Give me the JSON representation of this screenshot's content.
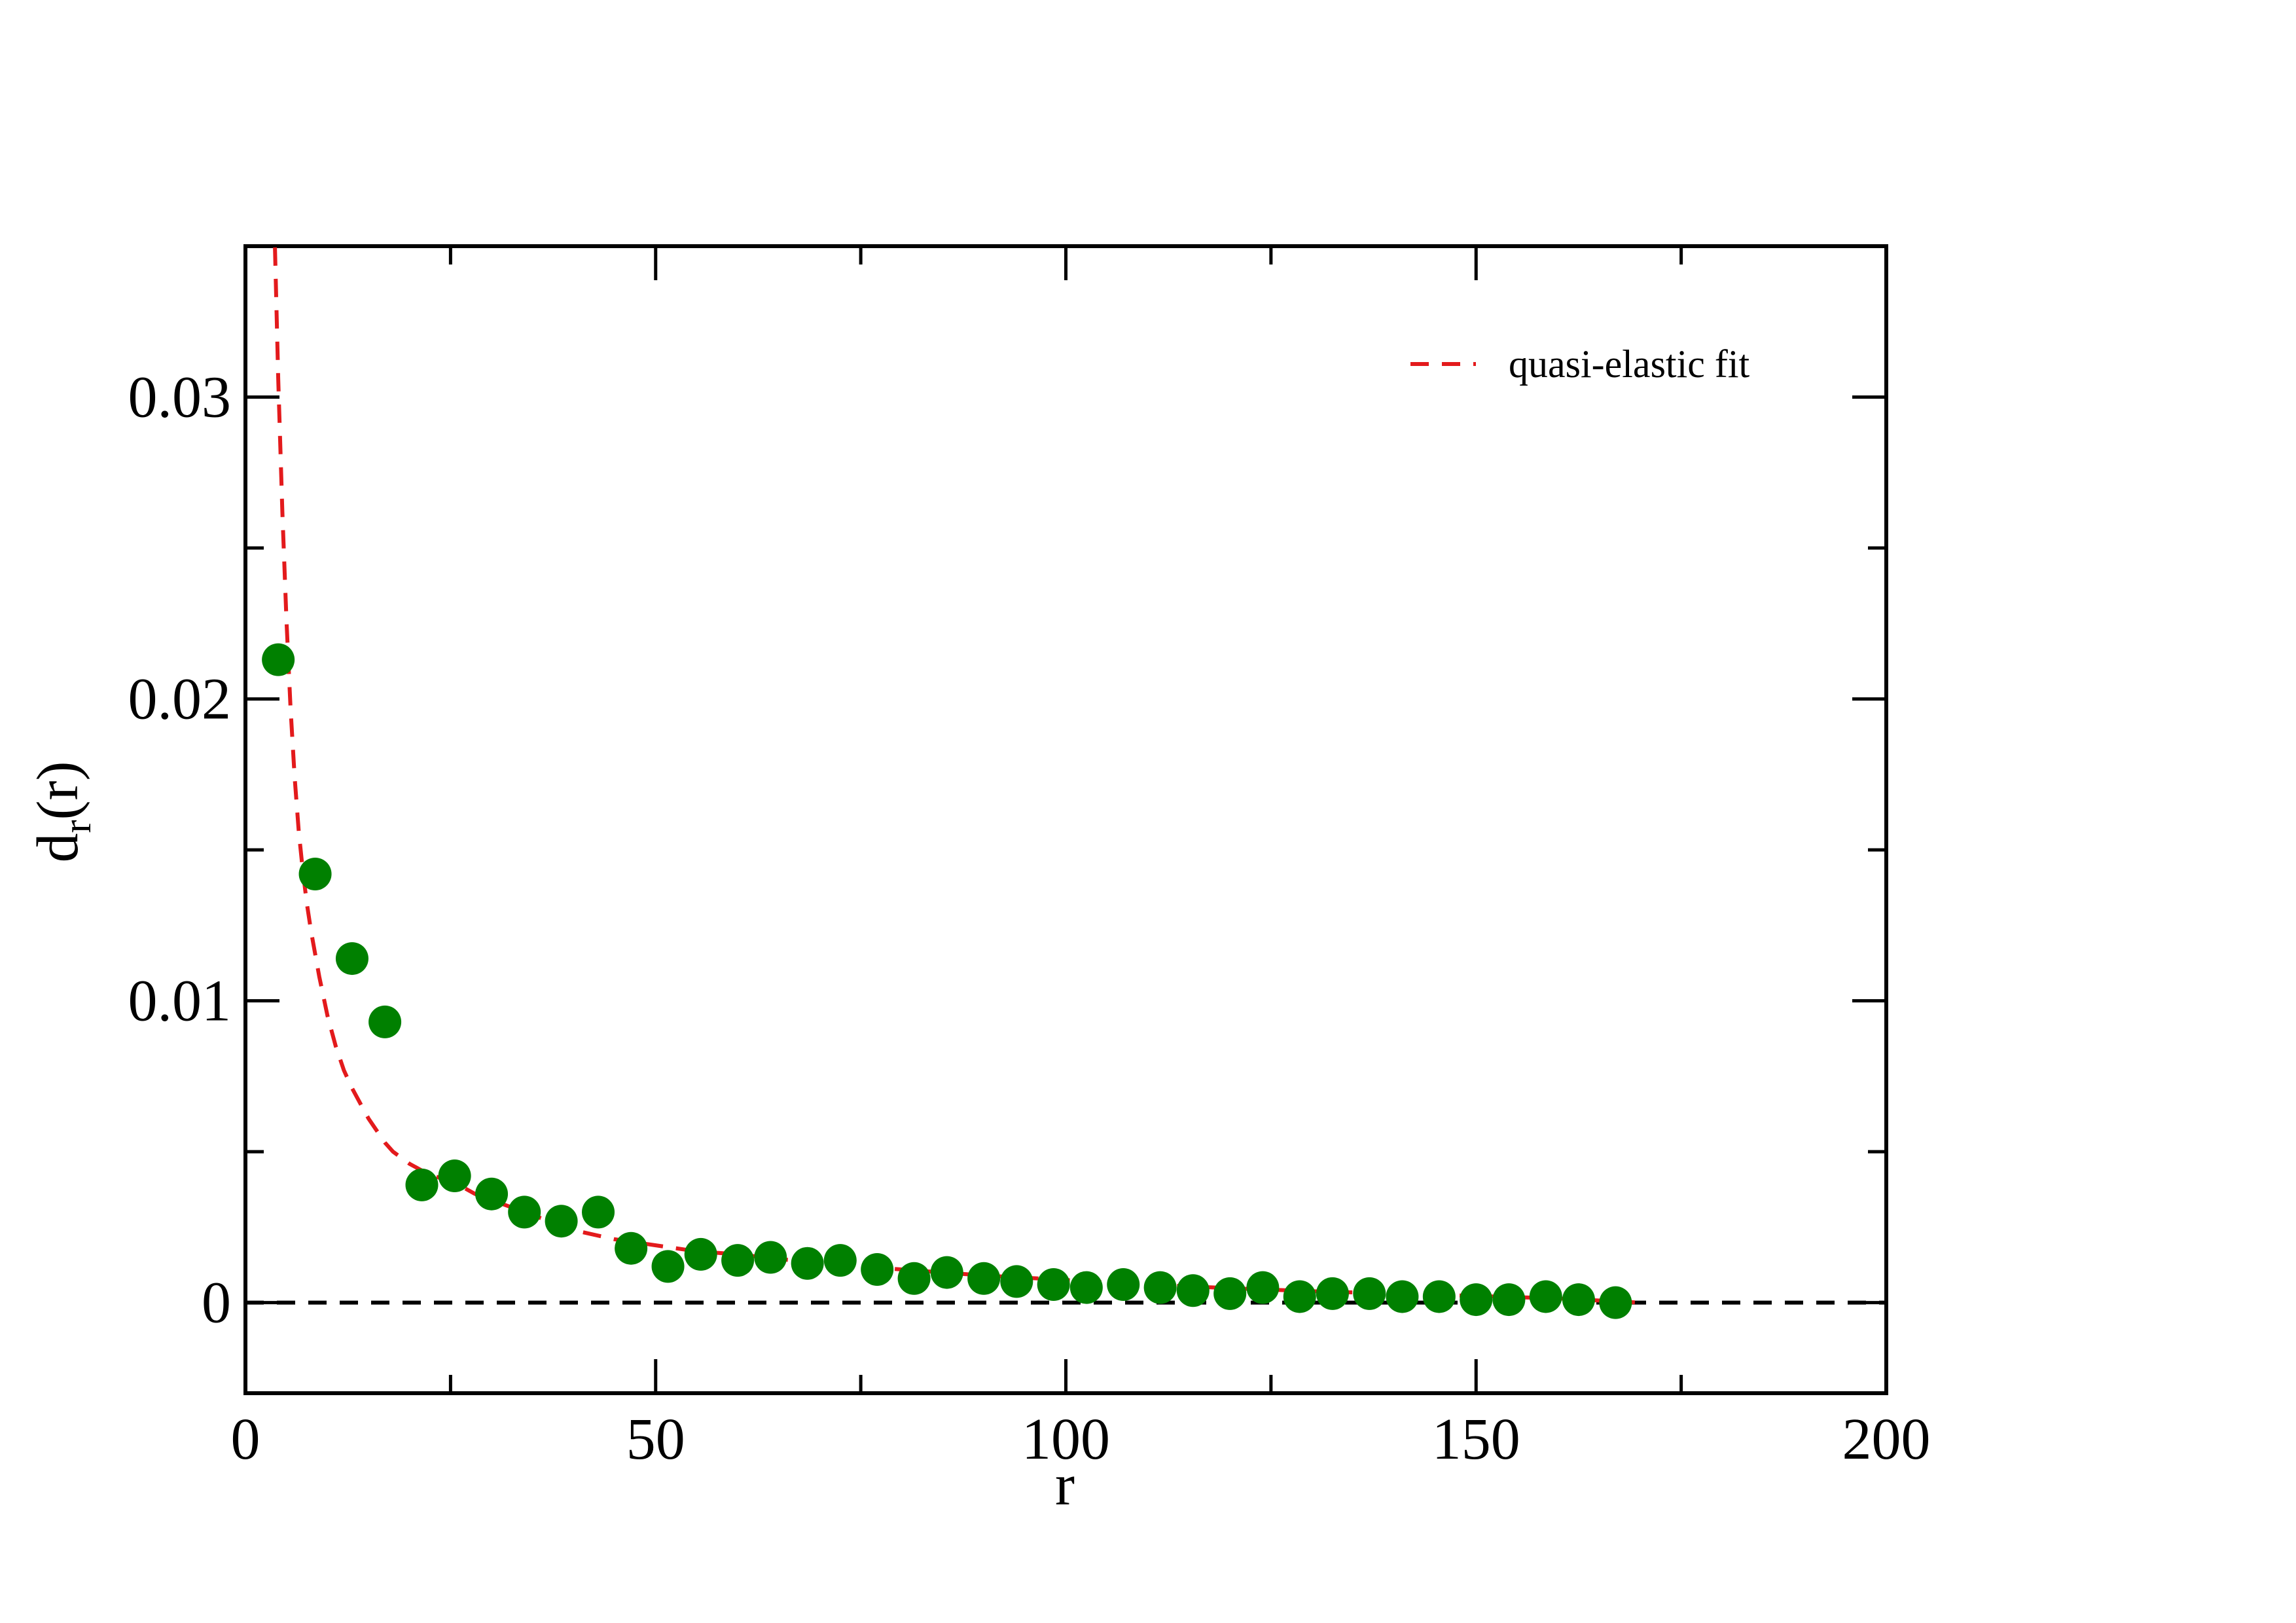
{
  "chart_data": {
    "type": "scatter",
    "xlabel": "r",
    "ylabel": {
      "main": "d",
      "subscript": "r",
      "suffix": "(r)"
    },
    "xlim": [
      0,
      200
    ],
    "ylim": [
      -0.003,
      0.035
    ],
    "x_ticks": [
      0,
      50,
      100,
      150,
      200
    ],
    "x_tick_labels": [
      "0",
      "50",
      "100",
      "150",
      "200"
    ],
    "x_minor_ticks": [
      25,
      75,
      125,
      175
    ],
    "y_ticks": [
      0,
      0.01,
      0.02,
      0.03
    ],
    "y_tick_labels": [
      "0",
      "0.01",
      "0.02",
      "0.03"
    ],
    "y_minor_ticks": [
      0.005,
      0.015,
      0.025
    ],
    "grid": false,
    "legend_position": "top-right",
    "reference_line": {
      "y": 0,
      "x_range": [
        0,
        200
      ],
      "color": "#000000",
      "style": "dashed"
    },
    "series": [
      {
        "kind": "points",
        "color": "#008000",
        "x": [
          4,
          8.5,
          13,
          17,
          21.5,
          25.5,
          30,
          34,
          38.5,
          43,
          47,
          51.5,
          55.5,
          60,
          64,
          68.5,
          72.5,
          77,
          81.5,
          85.5,
          90,
          94,
          98.5,
          102.5,
          107,
          111.5,
          115.5,
          120,
          124,
          128.5,
          132.5,
          137,
          141,
          145.5,
          150,
          154,
          158.5,
          162.5,
          167
        ],
        "y": [
          0.0213,
          0.0142,
          0.0114,
          0.0093,
          0.0039,
          0.0042,
          0.0036,
          0.003,
          0.0027,
          0.003,
          0.0018,
          0.0012,
          0.0016,
          0.0014,
          0.0015,
          0.0013,
          0.0014,
          0.0011,
          0.0008,
          0.001,
          0.0008,
          0.0007,
          0.0006,
          0.0005,
          0.0006,
          0.0005,
          0.0004,
          0.0003,
          0.0005,
          0.0002,
          0.0003,
          0.0003,
          0.0002,
          0.0002,
          0.0001,
          0.0001,
          0.0002,
          0.0001,
          0.0
        ]
      },
      {
        "kind": "line",
        "name": "quasi-elastic fit",
        "color": "#e31a1c",
        "style": "dashed",
        "x": [
          3.5,
          4,
          4.5,
          5,
          5.5,
          6,
          6.5,
          7,
          7.5,
          8,
          9,
          10,
          11,
          12,
          13,
          14,
          15,
          16,
          17,
          18,
          19,
          20,
          22,
          24,
          26,
          28,
          30,
          33,
          36,
          40,
          45,
          50,
          55,
          60,
          70,
          80,
          90,
          100,
          110,
          120,
          130,
          140,
          150,
          160,
          170
        ],
        "y": [
          0.036,
          0.0306,
          0.0262,
          0.0226,
          0.0197,
          0.0174,
          0.0156,
          0.0143,
          0.0132,
          0.0123,
          0.0108,
          0.0095,
          0.0085,
          0.0077,
          0.0071,
          0.0066,
          0.0061,
          0.0057,
          0.0053,
          0.005,
          0.0048,
          0.0046,
          0.0043,
          0.0041,
          0.0039,
          0.0036,
          0.0034,
          0.0031,
          0.0028,
          0.0024,
          0.0021,
          0.0019,
          0.0017,
          0.0016,
          0.0013,
          0.0011,
          0.0009,
          0.00075,
          0.0006,
          0.00048,
          0.00038,
          0.0003,
          0.00022,
          0.00014,
          0.0
        ]
      }
    ]
  }
}
